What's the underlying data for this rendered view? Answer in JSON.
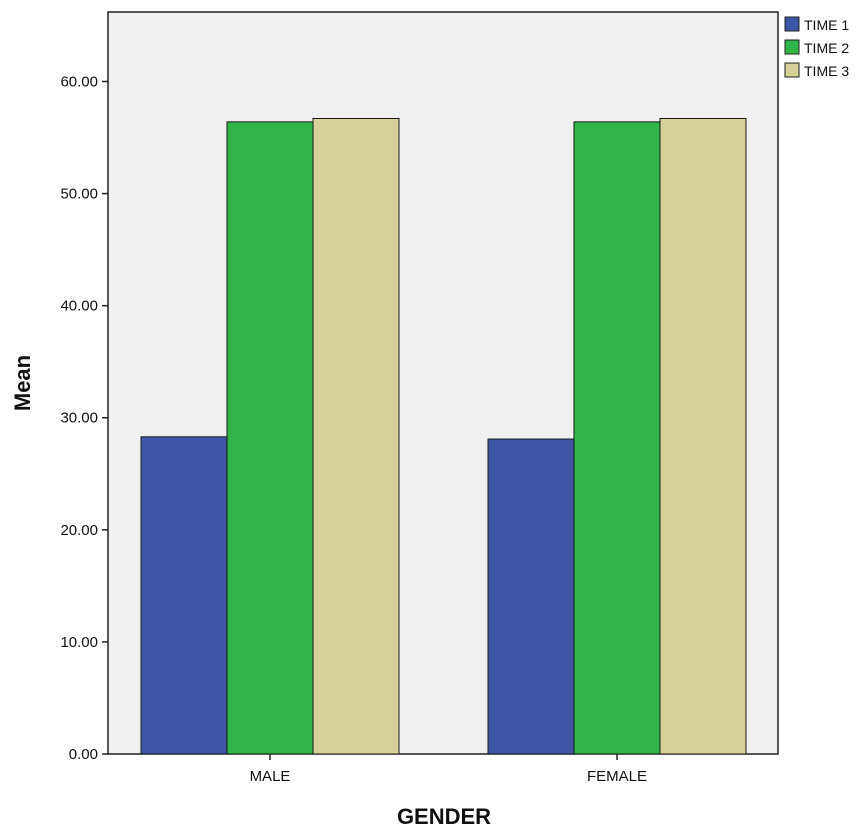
{
  "chart_data": {
    "type": "bar",
    "xlabel": "GENDER",
    "ylabel": "Mean",
    "categories": [
      "MALE",
      "FEMALE"
    ],
    "series": [
      {
        "name": "TIME 1",
        "color": "#3f56a6",
        "values": [
          28.3,
          28.1
        ]
      },
      {
        "name": "TIME 2",
        "color": "#2fb548",
        "values": [
          56.4,
          56.4
        ]
      },
      {
        "name": "TIME 3",
        "color": "#d6d197",
        "values": [
          56.7,
          56.7
        ]
      }
    ],
    "ylim": [
      0,
      66.2
    ],
    "yticks": [
      0,
      10,
      20,
      30,
      40,
      50,
      60
    ],
    "ytick_labels": [
      "0.00",
      "10.00",
      "20.00",
      "30.00",
      "40.00",
      "50.00",
      "60.00"
    ],
    "grid": false,
    "legend_position": "top-right",
    "plot_background": "#f0f0f0"
  }
}
